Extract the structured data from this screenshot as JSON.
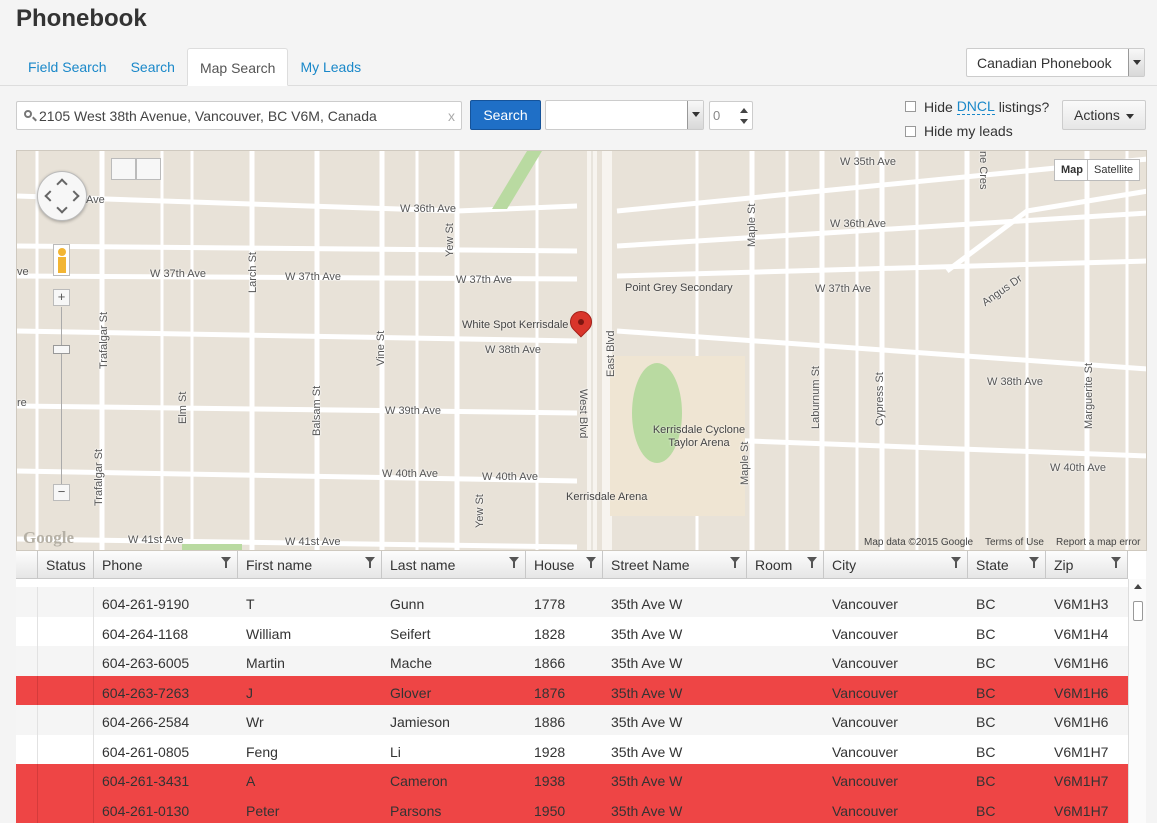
{
  "app": {
    "title": "Phonebook"
  },
  "tabs": [
    {
      "label": "Field Search",
      "active": false
    },
    {
      "label": "Search",
      "active": false
    },
    {
      "label": "Map Search",
      "active": true
    },
    {
      "label": "My Leads",
      "active": false
    }
  ],
  "phonebook_select": {
    "value": "Canadian Phonebook"
  },
  "search": {
    "address": "2105 West 38th Avenue, Vancouver, BC V6M, Canada",
    "button_label": "Search",
    "clear_glyph": "x",
    "radius_value": "",
    "count_value": "0"
  },
  "options": {
    "hide_dncl_prefix": "Hide ",
    "hide_dncl_link": "DNCL",
    "hide_dncl_suffix": " listings?",
    "hide_dncl_checked": false,
    "hide_my_leads_label": "Hide my leads",
    "hide_my_leads_checked": false
  },
  "actions": {
    "label": "Actions"
  },
  "map": {
    "type_map": "Map",
    "type_satellite": "Satellite",
    "footer_data": "Map data ©2015 Google",
    "footer_terms": "Terms of Use",
    "footer_report": "Report a map error",
    "logo": "Google",
    "streets": [
      "W 35th Ave",
      "W 36th Ave",
      "W 36th Ave",
      "W 37th Ave",
      "W 37th Ave",
      "W 37th Ave",
      "W 37th Ave",
      "W 38th Ave",
      "W 38th Ave",
      "W 39th Ave",
      "W 40th Ave",
      "W 40th Ave",
      "W 40th Ave",
      "W 41st Ave",
      "W 41st Ave",
      "Ave",
      "ve",
      "re",
      "Angus Dr",
      "Trafalgar St",
      "Trafalgar St",
      "Larch St",
      "Elm St",
      "Balsam St",
      "Vine St",
      "Yew St",
      "Yew St",
      "West Blvd",
      "East Blvd",
      "Maple St",
      "Maple St",
      "Laburnum St",
      "Cypress St",
      "Marguerite St",
      "ne Cres"
    ],
    "pois": [
      "Point Grey Secondary",
      "White Spot Kerrisdale",
      "Kerrisdale Cyclone Taylor Arena",
      "Kerrisdale Arena"
    ]
  },
  "grid": {
    "columns": [
      "",
      "Status",
      "Phone",
      "First name",
      "Last name",
      "House",
      "Street Name",
      "Room",
      "City",
      "State",
      "Zip"
    ],
    "rows": [
      {
        "status": "",
        "phone": "604-261-9190",
        "first": "T",
        "last": "Gunn",
        "house": "1778",
        "street": "35th Ave W",
        "room": "",
        "city": "Vancouver",
        "state": "BC",
        "zip": "V6M1H3",
        "flag": false
      },
      {
        "status": "",
        "phone": "604-264-1168",
        "first": "William",
        "last": "Seifert",
        "house": "1828",
        "street": "35th Ave W",
        "room": "",
        "city": "Vancouver",
        "state": "BC",
        "zip": "V6M1H4",
        "flag": false
      },
      {
        "status": "",
        "phone": "604-263-6005",
        "first": "Martin",
        "last": "Mache",
        "house": "1866",
        "street": "35th Ave W",
        "room": "",
        "city": "Vancouver",
        "state": "BC",
        "zip": "V6M1H6",
        "flag": false
      },
      {
        "status": "",
        "phone": "604-263-7263",
        "first": "J",
        "last": "Glover",
        "house": "1876",
        "street": "35th Ave W",
        "room": "",
        "city": "Vancouver",
        "state": "BC",
        "zip": "V6M1H6",
        "flag": true
      },
      {
        "status": "",
        "phone": "604-266-2584",
        "first": "Wr",
        "last": "Jamieson",
        "house": "1886",
        "street": "35th Ave W",
        "room": "",
        "city": "Vancouver",
        "state": "BC",
        "zip": "V6M1H6",
        "flag": false
      },
      {
        "status": "",
        "phone": "604-261-0805",
        "first": "Feng",
        "last": "Li",
        "house": "1928",
        "street": "35th Ave W",
        "room": "",
        "city": "Vancouver",
        "state": "BC",
        "zip": "V6M1H7",
        "flag": false
      },
      {
        "status": "",
        "phone": "604-261-3431",
        "first": "A",
        "last": "Cameron",
        "house": "1938",
        "street": "35th Ave W",
        "room": "",
        "city": "Vancouver",
        "state": "BC",
        "zip": "V6M1H7",
        "flag": true
      },
      {
        "status": "",
        "phone": "604-261-0130",
        "first": "Peter",
        "last": "Parsons",
        "house": "1950",
        "street": "35th Ave W",
        "room": "",
        "city": "Vancouver",
        "state": "BC",
        "zip": "V6M1H7",
        "flag": true
      }
    ]
  },
  "colors": {
    "accent": "#1a88c9",
    "search_button": "#1f6fc6",
    "flag_row": "#ee4545",
    "map_bg": "#e8e2d8"
  }
}
